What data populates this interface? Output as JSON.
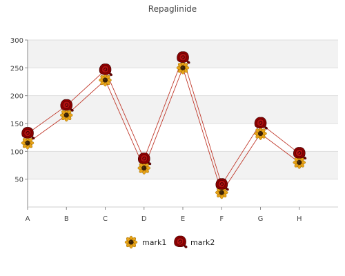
{
  "chart_data": {
    "type": "line",
    "title": "Repaglinide",
    "categories": [
      "A",
      "B",
      "C",
      "D",
      "E",
      "F",
      "G",
      "H"
    ],
    "yticks": [
      50,
      100,
      150,
      200,
      250,
      300
    ],
    "ylim": [
      0,
      300
    ],
    "grid": "horizontal-bands",
    "legend_position": "bottom-center",
    "series": [
      {
        "name": "mark1",
        "values": [
          115,
          165,
          228,
          70,
          250,
          26,
          132,
          80
        ],
        "color": "#c0392b",
        "marker": "sunflower-icon"
      },
      {
        "name": "mark2",
        "values": [
          132,
          182,
          246,
          86,
          268,
          40,
          150,
          96
        ],
        "color": "#c0392b",
        "marker": "red-rose-icon"
      }
    ]
  }
}
